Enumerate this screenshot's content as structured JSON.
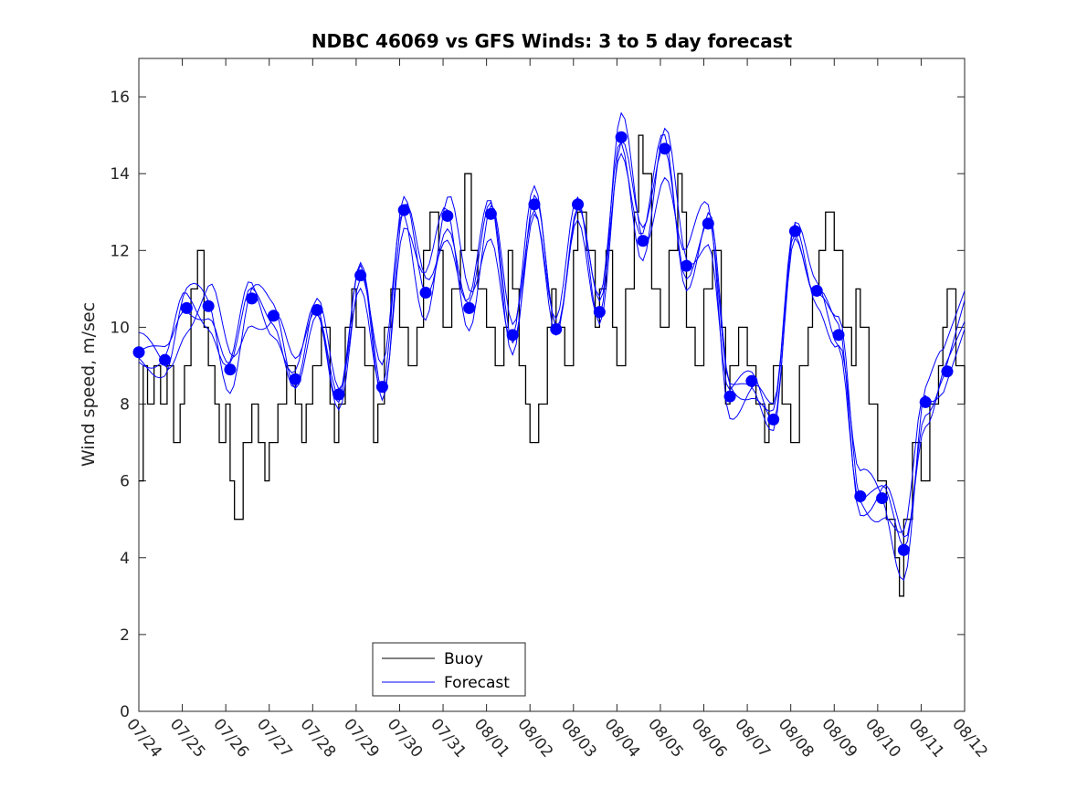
{
  "chart_data": {
    "type": "line",
    "title": "NDBC 46069 vs GFS Winds: 3 to 5 day forecast",
    "xlabel": "",
    "ylabel": "Wind speed, m/sec",
    "xlim": [
      "07/24",
      "08/12"
    ],
    "ylim": [
      0,
      17
    ],
    "grid": false,
    "legend_position": "bottom-center",
    "x_tick_labels": [
      "07/24",
      "07/25",
      "07/26",
      "07/27",
      "07/28",
      "07/29",
      "07/30",
      "07/31",
      "08/01",
      "08/02",
      "08/03",
      "08/04",
      "08/05",
      "08/06",
      "08/07",
      "08/08",
      "08/09",
      "08/10",
      "08/11",
      "08/12"
    ],
    "y_ticks": [
      0,
      2,
      4,
      6,
      8,
      10,
      12,
      14,
      16
    ],
    "colors": {
      "buoy": "#000000",
      "forecast": "#0000ff",
      "axes": "#262626"
    },
    "series": [
      {
        "name": "Buoy",
        "style": "stair",
        "x_days": [
          0,
          0.1,
          0.2,
          0.35,
          0.5,
          0.65,
          0.8,
          0.95,
          1.05,
          1.2,
          1.35,
          1.5,
          1.6,
          1.75,
          1.85,
          2.0,
          2.1,
          2.2,
          2.4,
          2.6,
          2.75,
          2.9,
          3.0,
          3.2,
          3.4,
          3.5,
          3.6,
          3.75,
          3.85,
          4.0,
          4.2,
          4.4,
          4.5,
          4.6,
          4.75,
          4.9,
          5.0,
          5.2,
          5.4,
          5.5,
          5.65,
          5.8,
          6.0,
          6.2,
          6.4,
          6.55,
          6.7,
          6.9,
          7.0,
          7.2,
          7.4,
          7.5,
          7.65,
          7.8,
          8.0,
          8.2,
          8.4,
          8.5,
          8.6,
          8.75,
          8.9,
          9.0,
          9.2,
          9.4,
          9.5,
          9.6,
          9.8,
          10.0,
          10.1,
          10.3,
          10.5,
          10.6,
          10.75,
          10.9,
          11.0,
          11.2,
          11.4,
          11.5,
          11.6,
          11.8,
          12.0,
          12.2,
          12.4,
          12.5,
          12.6,
          12.8,
          13.0,
          13.2,
          13.4,
          13.5,
          13.6,
          13.8,
          14.0,
          14.2,
          14.4,
          14.5,
          14.6,
          14.8,
          15.0,
          15.2,
          15.4,
          15.5,
          15.65,
          15.8,
          16.0,
          16.2,
          16.4,
          16.5,
          16.6,
          16.8,
          17.0,
          17.2,
          17.4,
          17.5,
          17.6,
          17.8,
          18.0,
          18.2,
          18.4,
          18.5,
          18.6,
          18.8,
          19.0
        ],
        "values": [
          6,
          9,
          8,
          9,
          8,
          9,
          7,
          8,
          9,
          11,
          12,
          10,
          9,
          8,
          7,
          8,
          6,
          5,
          7,
          8,
          7,
          6,
          7,
          8,
          9,
          9,
          8,
          7,
          8,
          9,
          10,
          8,
          7,
          8,
          10,
          11,
          10,
          9,
          7,
          8,
          10,
          11,
          10,
          9,
          10,
          12,
          13,
          12,
          10,
          11,
          12,
          14,
          12,
          11,
          10,
          9,
          10,
          12,
          11,
          9,
          8,
          7,
          8,
          10,
          11,
          10,
          9,
          12,
          13,
          12,
          10,
          11,
          12,
          10,
          9,
          11,
          13,
          15,
          14,
          11,
          10,
          12,
          14,
          13,
          10,
          9,
          11,
          12,
          10,
          8,
          9,
          10,
          9,
          8,
          7,
          8,
          9,
          8,
          7,
          9,
          10,
          11,
          12,
          13,
          12,
          10,
          9,
          11,
          10,
          8,
          6,
          5,
          4,
          3,
          5,
          7,
          6,
          8,
          9,
          10,
          11,
          9,
          8
        ],
        "x_note": "days since 07/24"
      },
      {
        "name": "Forecast",
        "style": "line",
        "markers": {
          "x_days": [
            0.0,
            0.6,
            1.1,
            1.6,
            2.1,
            2.6,
            3.1,
            3.6,
            4.1,
            4.6,
            5.1,
            5.6,
            6.1,
            6.6,
            7.1,
            7.6,
            8.1,
            8.6,
            9.1,
            9.6,
            10.1,
            10.6,
            11.1,
            11.6,
            12.1,
            12.6,
            13.1,
            13.6,
            14.1,
            14.6,
            15.1,
            15.6,
            16.1,
            16.6,
            17.1,
            17.6,
            18.1,
            18.6
          ],
          "values": [
            9.35,
            9.15,
            10.5,
            10.55,
            8.9,
            10.75,
            10.3,
            8.65,
            10.45,
            8.25,
            11.35,
            8.45,
            13.05,
            10.9,
            12.9,
            10.5,
            12.95,
            9.8,
            13.2,
            9.95,
            13.2,
            10.4,
            14.95,
            12.25,
            14.65,
            11.6,
            12.7,
            8.2,
            8.6,
            7.6,
            12.5,
            10.95,
            9.8,
            5.6,
            5.55,
            4.2,
            8.05,
            8.85
          ]
        }
      }
    ]
  },
  "legend": {
    "buoy_label": "Buoy",
    "forecast_label": "Forecast"
  }
}
